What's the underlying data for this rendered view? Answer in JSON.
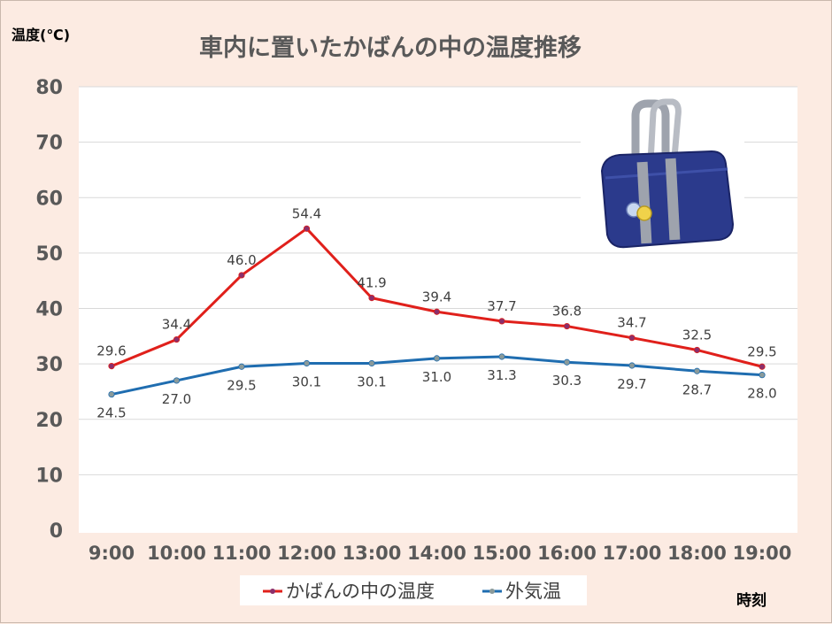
{
  "chart_data": {
    "type": "line",
    "title": "車内に置いたかばんの中の温度推移",
    "ylabel": "温度(℃)",
    "xlabel": "時刻",
    "x": [
      "9:00",
      "10:00",
      "11:00",
      "12:00",
      "13:00",
      "14:00",
      "15:00",
      "16:00",
      "17:00",
      "18:00",
      "19:00"
    ],
    "ylim": [
      0,
      80
    ],
    "yticks": [
      0,
      10,
      20,
      30,
      40,
      50,
      60,
      70,
      80
    ],
    "grid": true,
    "legend_position": "bottom",
    "series": [
      {
        "name": "かばんの中の温度",
        "color": "#e0201b",
        "marker_color": "#8b2f6b",
        "values": [
          29.6,
          34.4,
          46.0,
          54.4,
          41.9,
          39.4,
          37.7,
          36.8,
          34.7,
          32.5,
          29.5
        ],
        "labels": [
          "29.6",
          "34.4",
          "46.0",
          "54.4",
          "41.9",
          "39.4",
          "37.7",
          "36.8",
          "34.7",
          "32.5",
          "29.5"
        ]
      },
      {
        "name": "外気温",
        "color": "#1f6db0",
        "marker_color": "#8a9a9a",
        "values": [
          24.5,
          27.0,
          29.5,
          30.1,
          30.1,
          31.0,
          31.3,
          30.3,
          29.7,
          28.7,
          28.0
        ],
        "labels": [
          "24.5",
          "27.0",
          "29.5",
          "30.1",
          "30.1",
          "31.0",
          "31.3",
          "30.3",
          "29.7",
          "28.7",
          "28.0"
        ]
      }
    ],
    "illustration": "school-bag-icon"
  }
}
